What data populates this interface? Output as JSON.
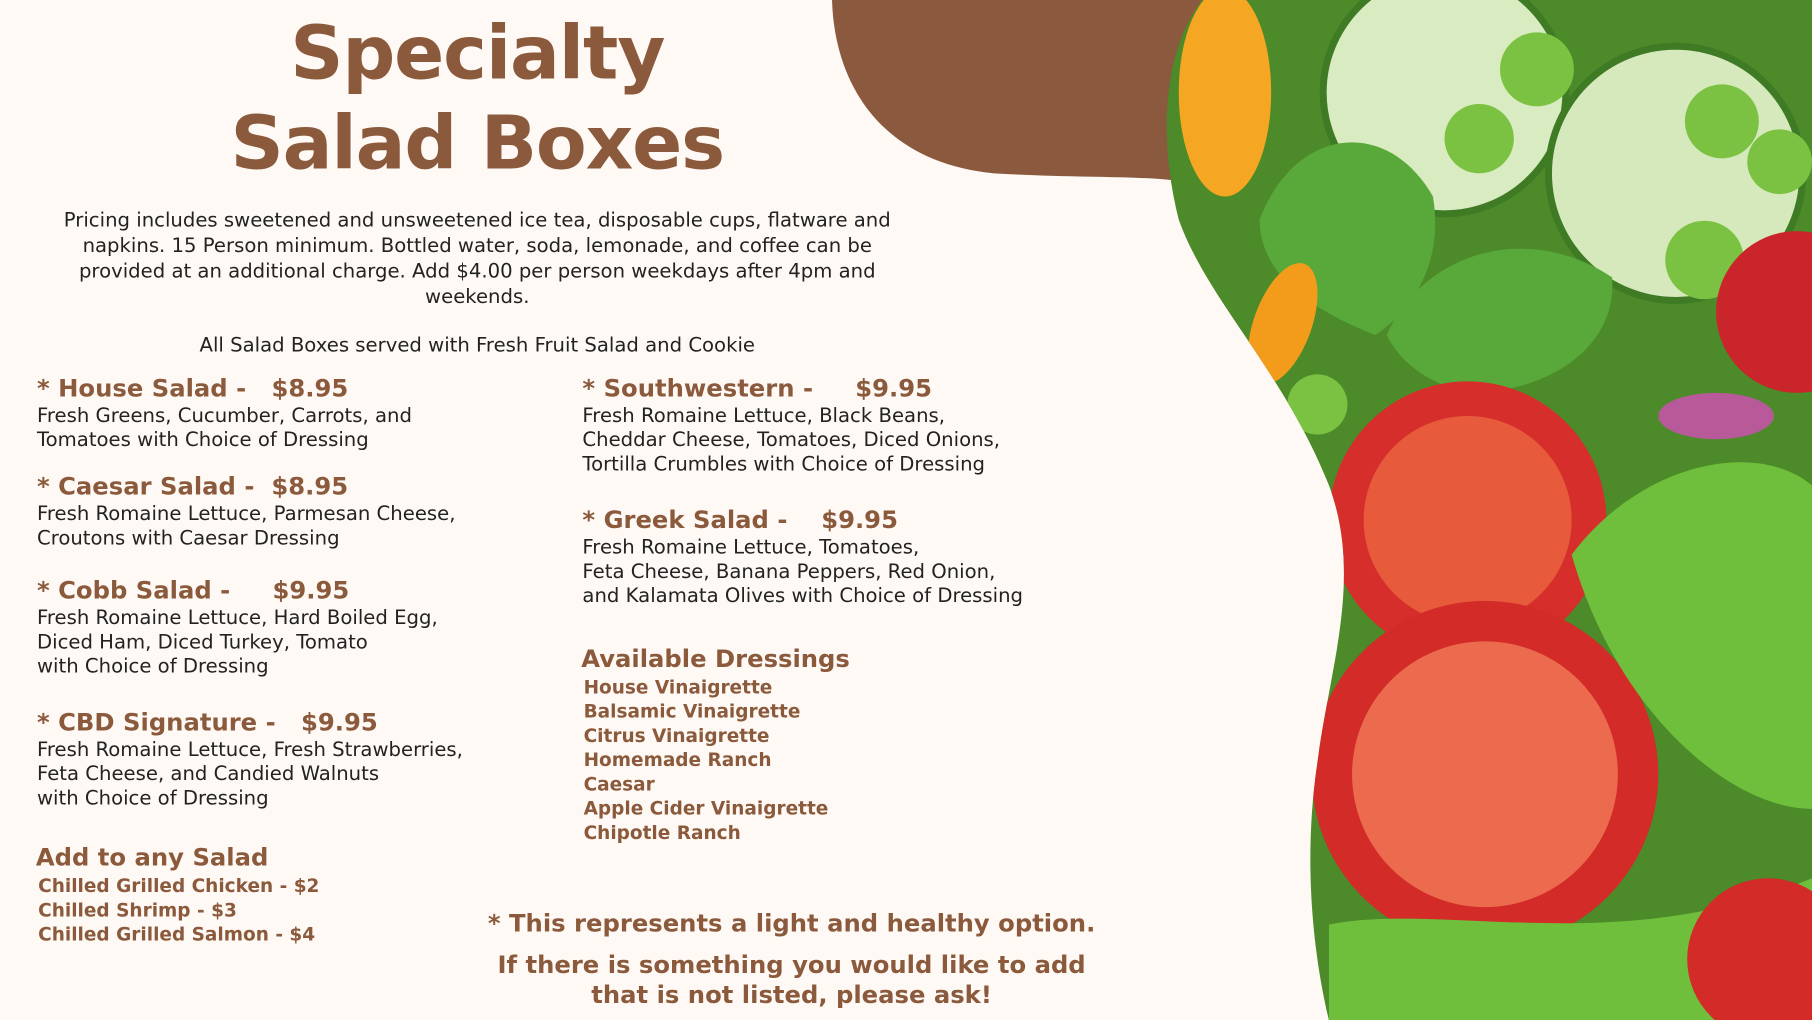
{
  "title": {
    "line1": "Specialty",
    "line2": "Salad Boxes"
  },
  "intro": {
    "line1": "Pricing includes sweetened and unsweetened ice tea, disposable cups, flatware and",
    "line2": "napkins. 15 Person minimum. Bottled water, soda, lemonade, and coffee can be",
    "line3": "provided at an additional charge. Add $4.00 per person weekdays after 4pm and",
    "line4": "weekends."
  },
  "served_with": "All Salad Boxes served with Fresh Fruit Salad and Cookie",
  "salads_left": [
    {
      "heading": "* House Salad -   $8.95",
      "lines": [
        "Fresh Greens, Cucumber, Carrots, and",
        "Tomatoes with Choice of Dressing"
      ]
    },
    {
      "heading": "* Caesar Salad -  $8.95",
      "lines": [
        "Fresh Romaine Lettuce, Parmesan Cheese,",
        "Croutons with Caesar Dressing"
      ]
    },
    {
      "heading": "* Cobb Salad -     $9.95",
      "lines": [
        "Fresh Romaine Lettuce, Hard Boiled Egg,",
        "Diced Ham, Diced Turkey, Tomato",
        "with Choice of Dressing"
      ]
    },
    {
      "heading": "* CBD Signature -   $9.95",
      "lines": [
        "Fresh Romaine Lettuce, Fresh Strawberries,",
        "Feta Cheese, and Candied Walnuts",
        "with Choice of Dressing"
      ]
    }
  ],
  "salads_right": [
    {
      "heading": "* Southwestern -     $9.95",
      "lines": [
        "Fresh Romaine Lettuce, Black Beans,",
        "Cheddar Cheese, Tomatoes, Diced Onions,",
        "Tortilla Crumbles with Choice of Dressing"
      ]
    },
    {
      "heading": "* Greek Salad -    $9.95",
      "lines": [
        "Fresh Romaine Lettuce, Tomatoes,",
        "Feta Cheese, Banana Peppers, Red Onion,",
        "and Kalamata Olives with Choice of Dressing"
      ]
    }
  ],
  "addons": {
    "heading": "Add to any Salad",
    "items": [
      "Chilled Grilled Chicken - $2",
      "Chilled Shrimp - $3",
      "Chilled Grilled Salmon - $4"
    ]
  },
  "dressings": {
    "heading": "Available Dressings",
    "items": [
      "House Vinaigrette",
      "Balsamic Vinaigrette",
      "Citrus Vinaigrette",
      "Homemade Ranch",
      "Caesar",
      "Apple Cider Vinaigrette",
      "Chipotle Ranch"
    ]
  },
  "notes": {
    "healthy": "* This represents a light and healthy option.",
    "ask_line1": "If there is something you would like to add",
    "ask_line2": "that is not listed, please ask!"
  },
  "colors": {
    "accent": "#8B5A3C",
    "background": "#FEF9F4"
  },
  "image": "salad-photo"
}
